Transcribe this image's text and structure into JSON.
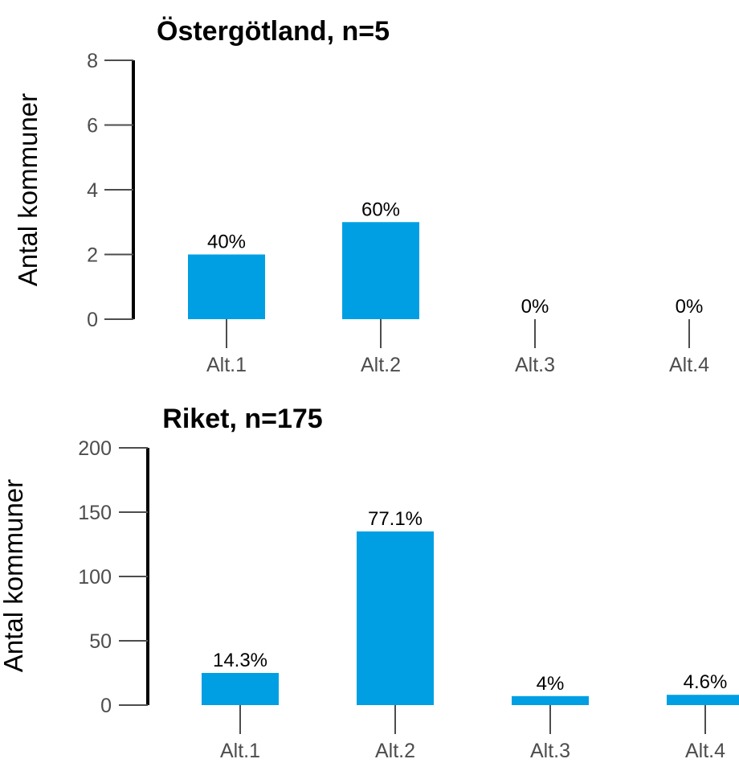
{
  "colors": {
    "bar": "#009fe3",
    "axis": "#000000",
    "tick": "#4d4d4d"
  },
  "chart_data": [
    {
      "type": "bar",
      "title": "Östergötland, n=5",
      "ylabel": "Antal kommuner",
      "xlabel": "",
      "ylim": [
        0,
        8
      ],
      "yticks": [
        0,
        2,
        4,
        6,
        8
      ],
      "categories": [
        "Alt.1",
        "Alt.2",
        "Alt.3",
        "Alt.4"
      ],
      "values": [
        2,
        3,
        0,
        0
      ],
      "labels": [
        "40%",
        "60%",
        "0%",
        "0%"
      ]
    },
    {
      "type": "bar",
      "title": "Riket, n=175",
      "ylabel": "Antal kommuner",
      "xlabel": "",
      "ylim": [
        0,
        200
      ],
      "yticks": [
        0,
        50,
        100,
        150,
        200
      ],
      "categories": [
        "Alt.1",
        "Alt.2",
        "Alt.3",
        "Alt.4"
      ],
      "values": [
        25,
        135,
        7,
        8
      ],
      "labels": [
        "14.3%",
        "77.1%",
        "4%",
        "4.6%"
      ]
    }
  ]
}
